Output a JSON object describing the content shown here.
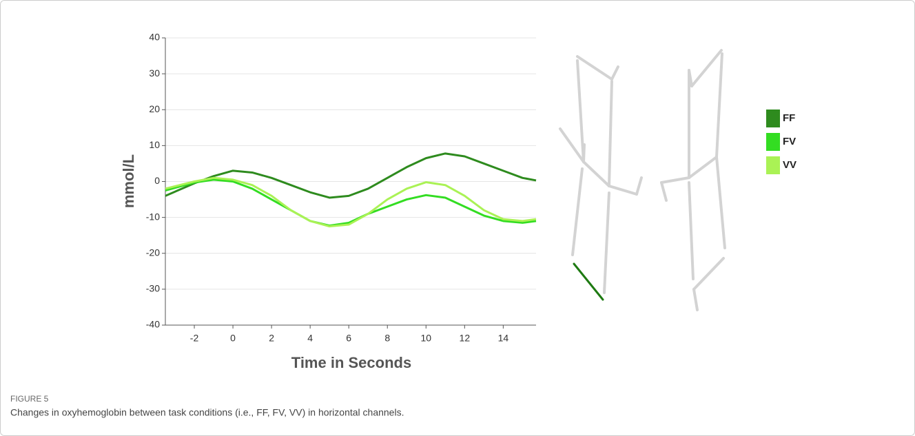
{
  "chart_data": {
    "type": "line",
    "x": [
      -3.5,
      -2,
      -1,
      0,
      1,
      2,
      3,
      4,
      5,
      6,
      7,
      8,
      9,
      10,
      11,
      12,
      13,
      14,
      15,
      15.7
    ],
    "series": [
      {
        "name": "FF",
        "color": "#2e8b1e",
        "values": [
          -4,
          -0.5,
          1.5,
          3,
          2.5,
          1,
          -1,
          -3,
          -4.5,
          -4,
          -2,
          1,
          4,
          6.5,
          7.8,
          7,
          5,
          3,
          1,
          0.3
        ]
      },
      {
        "name": "FV",
        "color": "#33dd22",
        "values": [
          -2.5,
          -0.3,
          0.5,
          0,
          -2,
          -5,
          -8,
          -11,
          -12.3,
          -11.5,
          -9,
          -7,
          -5,
          -3.8,
          -4.5,
          -7,
          -9.5,
          -11,
          -11.5,
          -11
        ]
      },
      {
        "name": "VV",
        "color": "#aaf255",
        "values": [
          -2,
          0,
          1,
          0.5,
          -1,
          -4,
          -8,
          -11,
          -12.5,
          -12,
          -9,
          -5,
          -2,
          -0.2,
          -1,
          -4,
          -8,
          -10.5,
          -11,
          -10.5
        ]
      }
    ],
    "xlabel": "Time in Seconds",
    "ylabel": "mmol/L",
    "xlim": [
      -3.5,
      15.7
    ],
    "xticks": [
      -2,
      0,
      2,
      4,
      6,
      8,
      10,
      12,
      14
    ],
    "ylim": [
      -40,
      40
    ],
    "yticks": [
      -40,
      -30,
      -20,
      -10,
      0,
      10,
      20,
      30,
      40
    ],
    "grid": true
  },
  "figure": {
    "label": "FIGURE 5",
    "caption": "Changes in oxyhemoglobin between task conditions (i.e., FF, FV, VV) in horizontal channels."
  }
}
